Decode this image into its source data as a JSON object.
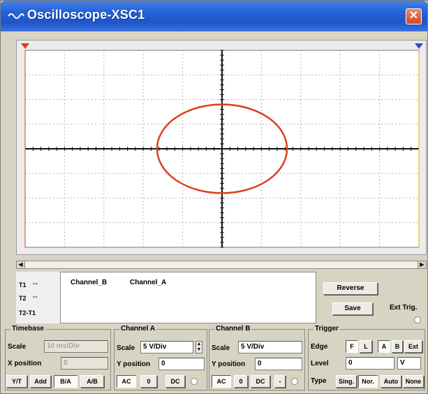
{
  "window": {
    "title": "Oscilloscope-XSC1",
    "close_glyph": "✕"
  },
  "colors": {
    "trace": "#d9421c",
    "grid": "#b8b8b8",
    "axis": "#111111",
    "cursor_left": "#d9421c",
    "cursor_right": "#2a50c8",
    "titlebar": "#2563d8"
  },
  "screen": {
    "divisions_x": 10,
    "divisions_y": 8
  },
  "chart_data": {
    "type": "scatter",
    "mode": "B/A (XY)",
    "x_label": "",
    "y_label": "",
    "xlim": [
      -5,
      5
    ],
    "ylim": [
      -4,
      4
    ],
    "series": [
      {
        "x_center": 0,
        "y_center": 0,
        "x_radius": 1.65,
        "y_radius": 1.8,
        "shape": "ellipse"
      }
    ]
  },
  "readout": {
    "cursors": [
      {
        "label": "T1",
        "arrows": "⇔"
      },
      {
        "label": "T2",
        "arrows": "⇔"
      },
      {
        "label": "T2-T1",
        "arrows": ""
      }
    ],
    "columns": [
      "Channel_B",
      "Channel_A"
    ]
  },
  "buttons": {
    "reverse": "Reverse",
    "save": "Save",
    "ext_trig": "Ext Trig."
  },
  "timebase": {
    "title": "Timebase",
    "scale_label": "Scale",
    "scale_value": "10 ms/Div",
    "xpos_label": "X position",
    "xpos_value": "0",
    "modes": [
      "Y/T",
      "Add",
      "B/A",
      "A/B"
    ],
    "active_mode": "B/A"
  },
  "channel_a": {
    "title": "Channel A",
    "scale_label": "Scale",
    "scale_value": "5  V/Div",
    "ypos_label": "Y position",
    "ypos_value": "0",
    "couplings": [
      "AC",
      "0",
      "DC"
    ]
  },
  "channel_b": {
    "title": "Channel B",
    "scale_label": "Scale",
    "scale_value": "5  V/Div",
    "ypos_label": "Y position",
    "ypos_value": "0",
    "couplings": [
      "AC",
      "0",
      "DC",
      "-"
    ]
  },
  "trigger": {
    "title": "Trigger",
    "edge_label": "Edge",
    "edges": [
      "F",
      "L",
      "A",
      "B",
      "Ext"
    ],
    "level_label": "Level",
    "level_value": "0",
    "level_unit": "V",
    "type_label": "Type",
    "types": [
      "Sing.",
      "Nor.",
      "Auto",
      "None"
    ],
    "active_type": "Nor."
  }
}
